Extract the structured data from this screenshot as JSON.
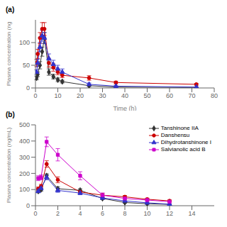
{
  "chart_data": [
    {
      "type": "line",
      "title": "(a)",
      "x_label": "Time (h)",
      "y_label": "Plasma concentration (ng",
      "x": [
        0.5,
        1,
        2,
        3,
        4,
        6,
        8,
        10,
        12,
        24,
        36,
        72
      ],
      "xlim": [
        0,
        80
      ],
      "xticks": [
        0,
        10,
        20,
        30,
        40,
        50,
        60,
        70,
        80
      ],
      "ylim": [
        0,
        150
      ],
      "yticks": [
        0,
        50,
        100
      ],
      "grid": false,
      "series": [
        {
          "color": "#333333",
          "marker": "diamond",
          "values": [
            22,
            30,
            50,
            80,
            110,
            35,
            25,
            18,
            14,
            5,
            2,
            1
          ],
          "errors": [
            4,
            5,
            8,
            10,
            12,
            7,
            5,
            4,
            3,
            2,
            1,
            0.5
          ]
        },
        {
          "color": "#cc0000",
          "marker": "circle",
          "values": [
            55,
            75,
            110,
            130,
            130,
            55,
            45,
            35,
            28,
            22,
            12,
            8
          ],
          "errors": [
            8,
            10,
            12,
            14,
            14,
            9,
            8,
            6,
            5,
            5,
            3,
            2
          ]
        },
        {
          "color": "#3333cc",
          "marker": "triangle",
          "values": [
            35,
            55,
            90,
            115,
            110,
            65,
            52,
            42,
            35,
            8,
            4,
            2
          ],
          "errors": [
            5,
            8,
            10,
            12,
            12,
            10,
            9,
            8,
            7,
            3,
            1,
            0.5
          ]
        }
      ]
    },
    {
      "type": "line",
      "title": "(b)",
      "y_label": "Plasma concentration (ng/mL)",
      "x": [
        0.25,
        0.5,
        1,
        2,
        4,
        6,
        8,
        10,
        12
      ],
      "xlim": [
        0,
        16
      ],
      "xticks": [
        0,
        2,
        4,
        6,
        8,
        10,
        12,
        14
      ],
      "ylim": [
        0,
        500
      ],
      "yticks": [
        0,
        100,
        200,
        300,
        400,
        500
      ],
      "grid": false,
      "legend": "upper right",
      "series": [
        {
          "name": "Tanshinone IIA",
          "color": "#333333",
          "marker": "diamond",
          "values": [
            90,
            100,
            185,
            105,
            95,
            45,
            20,
            12,
            8
          ],
          "errors": [
            10,
            10,
            12,
            12,
            10,
            6,
            5,
            3,
            2
          ]
        },
        {
          "name": "Danshensu",
          "color": "#cc0000",
          "marker": "circle",
          "values": [
            105,
            120,
            258,
            160,
            85,
            65,
            55,
            40,
            30
          ],
          "errors": [
            10,
            12,
            20,
            18,
            10,
            10,
            8,
            7,
            6
          ]
        },
        {
          "name": "Dihydrotanshinone I",
          "color": "#3333cc",
          "marker": "triangle",
          "values": [
            90,
            108,
            175,
            95,
            78,
            48,
            30,
            18,
            10
          ],
          "errors": [
            10,
            12,
            15,
            12,
            10,
            8,
            6,
            4,
            2
          ]
        },
        {
          "name": "Salvianolic acid B",
          "color": "#cc00cc",
          "marker": "square",
          "values": [
            170,
            175,
            395,
            315,
            185,
            65,
            45,
            35,
            25
          ],
          "errors": [
            15,
            15,
            30,
            38,
            25,
            14,
            10,
            8,
            6
          ]
        }
      ]
    }
  ]
}
